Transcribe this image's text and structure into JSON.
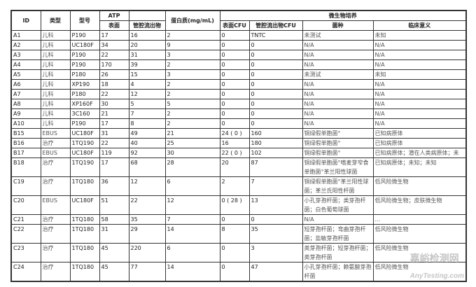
{
  "headers": {
    "id": "ID",
    "type": "类型",
    "model": "型号",
    "atp": "ATP",
    "atp_surface": "表面",
    "atp_lumen": "管腔流出物",
    "protein": "蛋白质(mg/mL)",
    "micro": "微生物培养",
    "cfu_surface": "表面CFU",
    "cfu_lumen": "管腔流出物CFU",
    "species": "菌种",
    "clinical": "临床意义"
  },
  "rows": [
    [
      "A1",
      "儿科",
      "P190",
      "17",
      "16",
      "2",
      "0",
      "TNTC",
      "未测试",
      "未知"
    ],
    [
      "A2",
      "儿科",
      "UC180F",
      "34",
      "20",
      "9",
      "0",
      "0",
      "N/A",
      "N/A"
    ],
    [
      "A3",
      "儿科",
      "P190",
      "22",
      "31",
      "3",
      "0",
      "0",
      "N/A",
      "N/A"
    ],
    [
      "A4",
      "儿科",
      "P190",
      "170",
      "39",
      "2",
      "0",
      "0",
      "N/A",
      "N/A"
    ],
    [
      "A5",
      "儿科",
      "P180",
      "26",
      "15",
      "3",
      "0",
      "0",
      "未测试",
      "未知"
    ],
    [
      "A6",
      "儿科",
      "XP190",
      "18",
      "4",
      "2",
      "0",
      "0",
      "N/A",
      "N/A"
    ],
    [
      "A7",
      "儿科",
      "P180",
      "22",
      "12",
      "2",
      "0",
      "0",
      "N/A",
      "N/A"
    ],
    [
      "A8",
      "儿科",
      "XP160F",
      "30",
      "5",
      "5",
      "0",
      "0",
      "N/A",
      "N/A"
    ],
    [
      "A9",
      "儿科",
      "3C160",
      "21",
      "7",
      "2",
      "0",
      "0",
      "N/A",
      "N/A"
    ],
    [
      "A10",
      "儿科",
      "P190",
      "17",
      "8",
      "2",
      "0",
      "0",
      "N/A",
      "N/A"
    ],
    [
      "B15",
      "EBUS",
      "UC180F",
      "31",
      "49",
      "21",
      "24 ( 0 )",
      "160",
      "铜绿假单胞菌°",
      "已知病原体"
    ],
    [
      "B16",
      "治疗",
      "1TQ190",
      "22",
      "40",
      "25",
      "16",
      "180",
      "铜绿假单胞菌°",
      "已知病原体"
    ],
    [
      "B17",
      "EBUS",
      "UC180F",
      "119",
      "92",
      "30",
      "22 ( 0 )",
      "102",
      "铜绿假单胞菌°",
      "已知病原体；潜在人类病原体；未"
    ],
    [
      "B18",
      "治疗",
      "1TQ190",
      "17",
      "68",
      "28",
      "20",
      "87",
      "铜绿假单胞菌°嗜麦芽窄食单胞菌°革兰阳性球菌",
      "已知病原体；未知；未知"
    ],
    [
      "C19",
      "治疗",
      "1TQ180",
      "36",
      "12",
      "6",
      "2",
      "7",
      "铜绿假单胞菌°革兰阳性球菌；革兰氏阳性杆菌",
      "低风险微生物"
    ],
    [
      "C20",
      "EBUS",
      "UC180F",
      "51",
      "22",
      "12",
      "0 ( 28 )",
      "13",
      "小孔芽孢杆菌；类芽孢杆菌；白色葡萄球菌",
      "低风险微生物；皮肤微生物"
    ],
    [
      "C21",
      "治疗",
      "1TQ180",
      "58",
      "35",
      "7",
      "0",
      "0",
      "N/A",
      "..."
    ],
    [
      "C22",
      "治疗",
      "1TQ180",
      "31",
      "29",
      "14",
      "8",
      "35",
      "短芽孢杆菌；弯曲芽孢杆菌；盐敏芽孢杆菌",
      "低风险微生物"
    ],
    [
      "C23",
      "治疗",
      "1TQ180",
      "45",
      "220",
      "6",
      "0",
      "3",
      "类芽孢杆菌；短芽孢杆菌；类芽孢杆菌",
      "低风险微生物"
    ],
    [
      "C24",
      "治疗",
      "1TQ180",
      "45",
      "77",
      "14",
      "0",
      "47",
      "小孔芽孢杆菌；赖氨酸芽孢杆菌",
      "低风险微生物"
    ]
  ],
  "watermark": {
    "line1": "嘉峪检测网",
    "line2": "AnyTesting.com"
  }
}
